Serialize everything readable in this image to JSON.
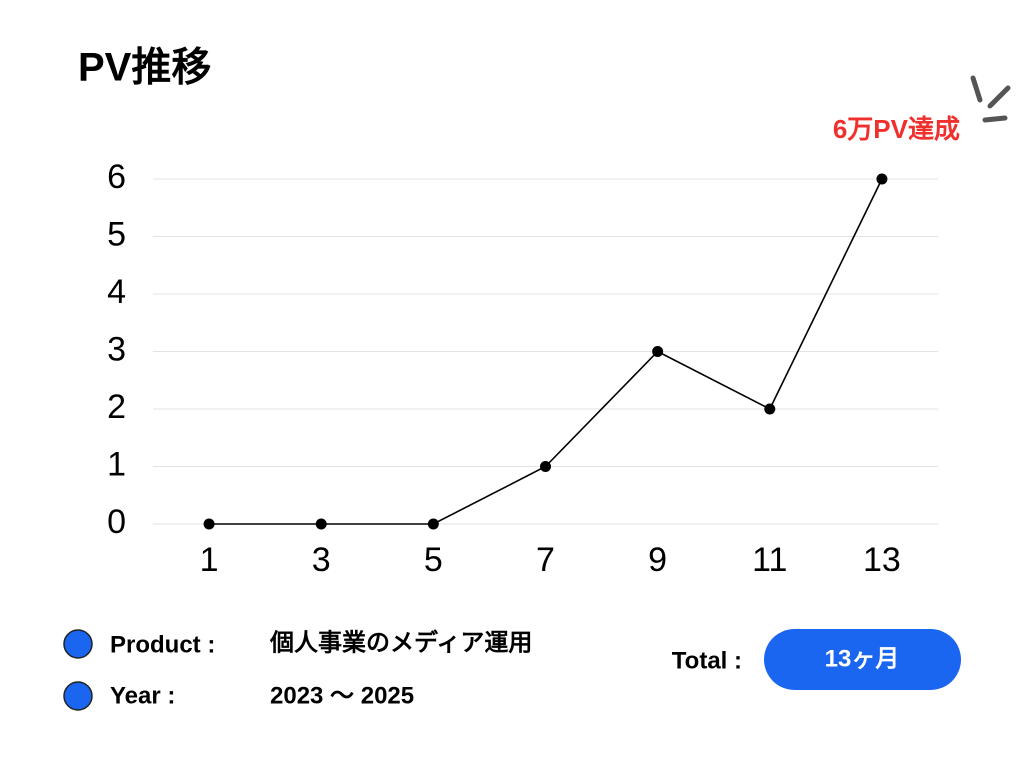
{
  "chart_data": {
    "type": "line",
    "title": "PV推移",
    "annotation": "6万PV達成",
    "x": [
      1,
      3,
      5,
      7,
      9,
      11,
      13
    ],
    "values": [
      0,
      0,
      0,
      1,
      3,
      2,
      6
    ],
    "color": "#000000",
    "xlim": [
      0,
      14
    ],
    "xticks": [
      1,
      3,
      5,
      7,
      9,
      11,
      13
    ],
    "ylim": [
      0,
      6
    ],
    "yticks": [
      0,
      1,
      2,
      3,
      4,
      5,
      6
    ],
    "grid": true
  },
  "info": {
    "product_label": "Product :",
    "product": "個人事業のメディア運用",
    "year_label": "Year :",
    "year": "2023 〜 2025",
    "total_label": "Total :",
    "total": "13ヶ月"
  }
}
